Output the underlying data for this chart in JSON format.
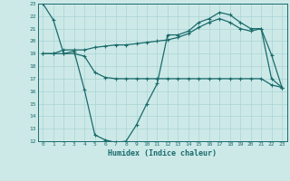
{
  "xlabel": "Humidex (Indice chaleur)",
  "xlim": [
    -0.5,
    23.5
  ],
  "ylim": [
    12,
    23
  ],
  "xticks": [
    0,
    1,
    2,
    3,
    4,
    5,
    6,
    7,
    8,
    9,
    10,
    11,
    12,
    13,
    14,
    15,
    16,
    17,
    18,
    19,
    20,
    21,
    22,
    23
  ],
  "yticks": [
    12,
    13,
    14,
    15,
    16,
    17,
    18,
    19,
    20,
    21,
    22,
    23
  ],
  "bg_color": "#cce9e8",
  "line_color": "#1a6b6b",
  "grid_color": "#aad4d3",
  "series": [
    [
      23,
      21.7,
      19.0,
      19.2,
      16.1,
      12.5,
      12.1,
      11.9,
      12.0,
      13.3,
      15.0,
      16.6,
      20.5,
      20.5,
      20.8,
      21.5,
      21.8,
      22.3,
      22.1,
      21.5,
      21.0,
      21.0,
      17.0,
      16.3
    ],
    [
      19.0,
      19.0,
      19.3,
      19.3,
      19.3,
      19.5,
      19.6,
      19.7,
      19.7,
      19.8,
      19.9,
      20.0,
      20.1,
      20.3,
      20.6,
      21.1,
      21.5,
      21.8,
      21.5,
      21.0,
      20.8,
      21.0,
      18.9,
      16.3
    ],
    [
      19.0,
      19.0,
      19.0,
      19.0,
      18.8,
      17.5,
      17.1,
      17.0,
      17.0,
      17.0,
      17.0,
      17.0,
      17.0,
      17.0,
      17.0,
      17.0,
      17.0,
      17.0,
      17.0,
      17.0,
      17.0,
      17.0,
      16.5,
      16.3
    ]
  ]
}
